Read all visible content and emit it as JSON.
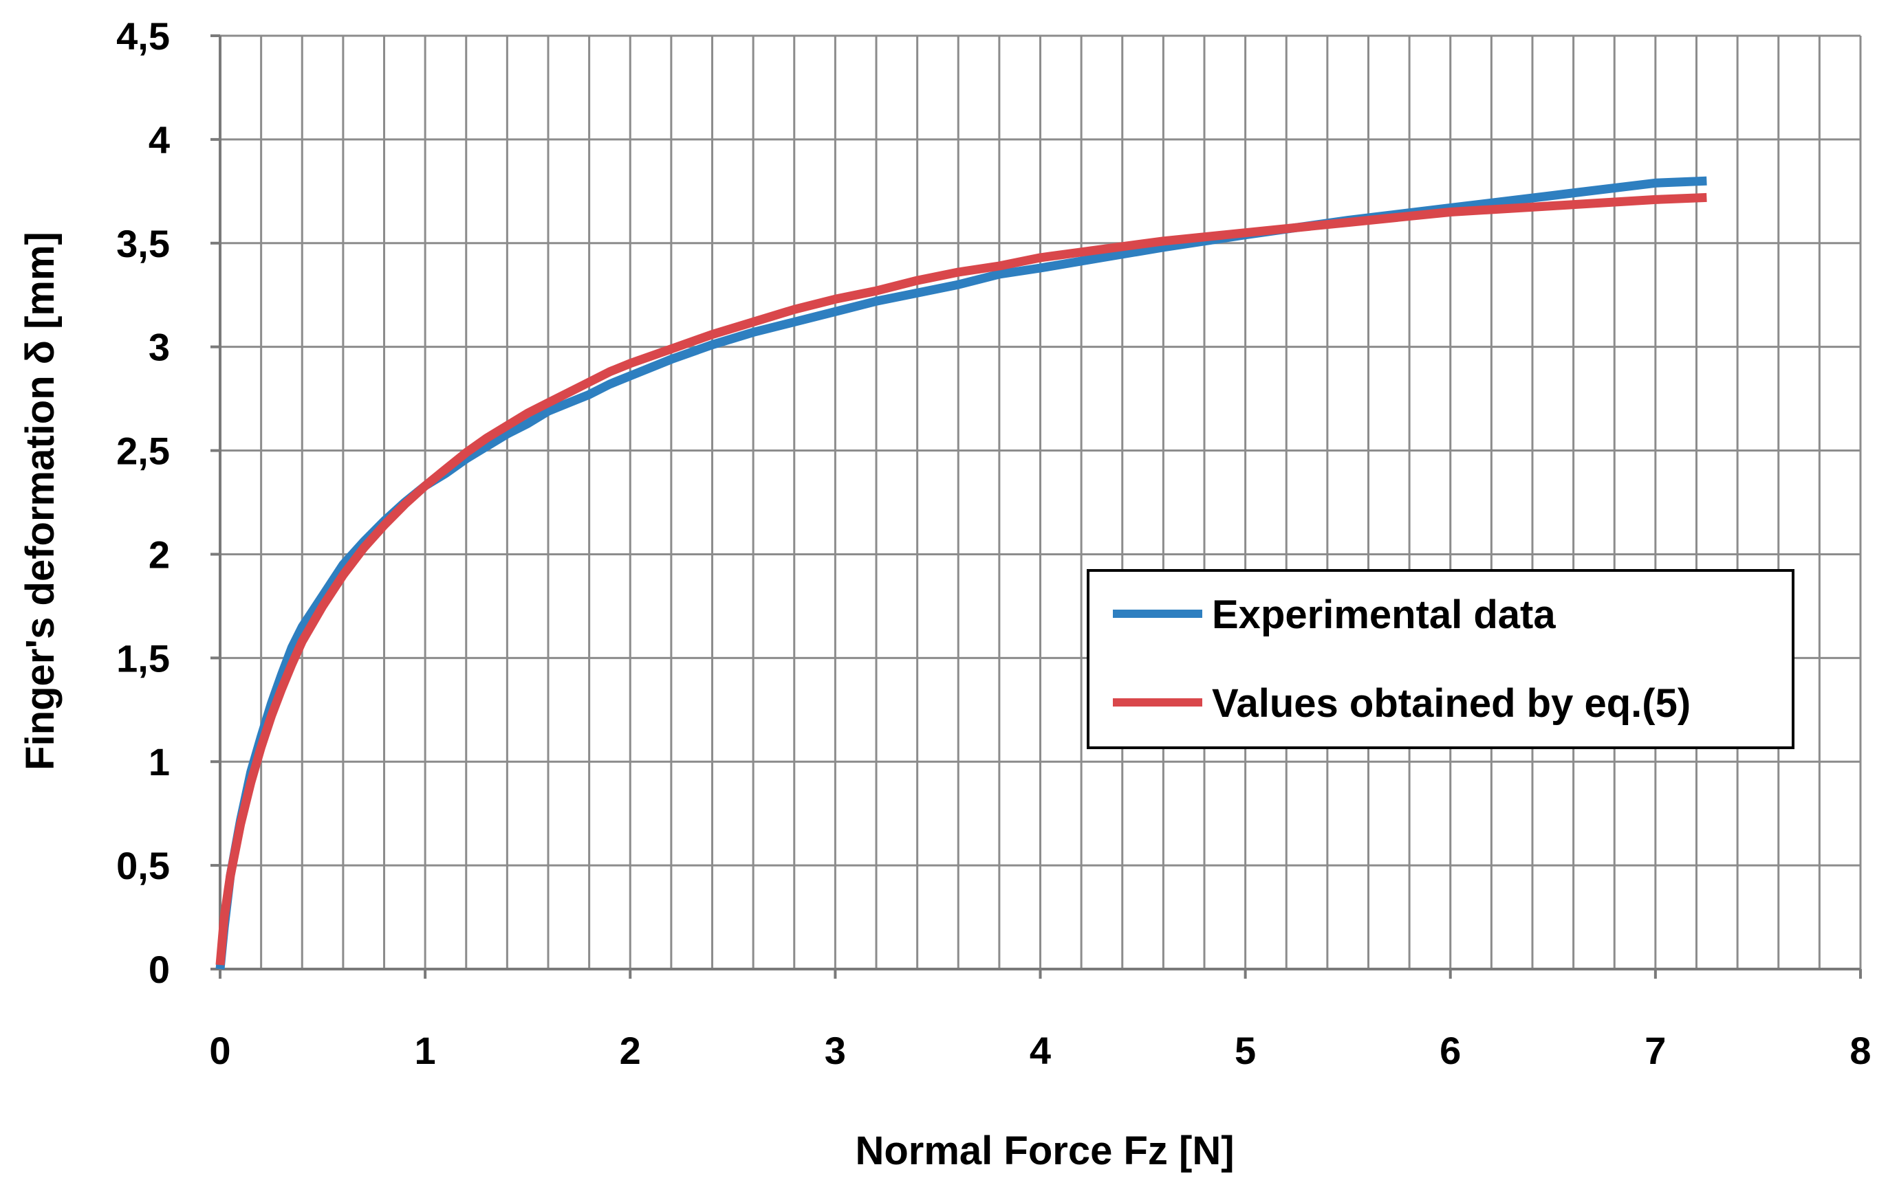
{
  "chart_data": {
    "type": "line",
    "title": "",
    "xlabel": "Normal Force Fz [N]",
    "ylabel": "Finger's deformation δ [mm]",
    "xlim": [
      0,
      8
    ],
    "ylim": [
      0,
      4.5
    ],
    "x_minor_step": 0.2,
    "grid": true,
    "x_ticks": [
      {
        "value": 0,
        "label": "0"
      },
      {
        "value": 1,
        "label": "1"
      },
      {
        "value": 2,
        "label": "2"
      },
      {
        "value": 3,
        "label": "3"
      },
      {
        "value": 4,
        "label": "4"
      },
      {
        "value": 5,
        "label": "5"
      },
      {
        "value": 6,
        "label": "6"
      },
      {
        "value": 7,
        "label": "7"
      },
      {
        "value": 8,
        "label": "8"
      }
    ],
    "y_ticks": [
      {
        "value": 0,
        "label": "0"
      },
      {
        "value": 0.5,
        "label": "0,5"
      },
      {
        "value": 1,
        "label": "1"
      },
      {
        "value": 1.5,
        "label": "1,5"
      },
      {
        "value": 2,
        "label": "2"
      },
      {
        "value": 2.5,
        "label": "2,5"
      },
      {
        "value": 3,
        "label": "3"
      },
      {
        "value": 3.5,
        "label": "3,5"
      },
      {
        "value": 4,
        "label": "4"
      },
      {
        "value": 4.5,
        "label": "4,5"
      }
    ],
    "legend_position": "center-right",
    "series": [
      {
        "name": "Experimental data",
        "color": "#2e7fc0",
        "points": [
          [
            0.0,
            0.0
          ],
          [
            0.02,
            0.2
          ],
          [
            0.05,
            0.45
          ],
          [
            0.1,
            0.72
          ],
          [
            0.15,
            0.95
          ],
          [
            0.2,
            1.12
          ],
          [
            0.25,
            1.28
          ],
          [
            0.3,
            1.42
          ],
          [
            0.35,
            1.55
          ],
          [
            0.4,
            1.65
          ],
          [
            0.5,
            1.8
          ],
          [
            0.6,
            1.95
          ],
          [
            0.7,
            2.06
          ],
          [
            0.8,
            2.16
          ],
          [
            0.9,
            2.25
          ],
          [
            1.0,
            2.33
          ],
          [
            1.1,
            2.39
          ],
          [
            1.2,
            2.46
          ],
          [
            1.3,
            2.52
          ],
          [
            1.4,
            2.58
          ],
          [
            1.5,
            2.63
          ],
          [
            1.6,
            2.69
          ],
          [
            1.7,
            2.73
          ],
          [
            1.8,
            2.77
          ],
          [
            1.9,
            2.82
          ],
          [
            2.0,
            2.86
          ],
          [
            2.2,
            2.94
          ],
          [
            2.4,
            3.01
          ],
          [
            2.6,
            3.07
          ],
          [
            2.8,
            3.12
          ],
          [
            3.0,
            3.17
          ],
          [
            3.2,
            3.22
          ],
          [
            3.4,
            3.26
          ],
          [
            3.6,
            3.3
          ],
          [
            3.8,
            3.35
          ],
          [
            4.0,
            3.38
          ],
          [
            4.3,
            3.43
          ],
          [
            4.6,
            3.48
          ],
          [
            5.0,
            3.54
          ],
          [
            5.5,
            3.61
          ],
          [
            6.0,
            3.67
          ],
          [
            6.5,
            3.73
          ],
          [
            7.0,
            3.79
          ],
          [
            7.25,
            3.8
          ]
        ]
      },
      {
        "name": "Values obtained by eq.(5)",
        "color": "#d9474b",
        "points": [
          [
            0.0,
            0.02
          ],
          [
            0.02,
            0.25
          ],
          [
            0.05,
            0.45
          ],
          [
            0.1,
            0.7
          ],
          [
            0.15,
            0.9
          ],
          [
            0.2,
            1.07
          ],
          [
            0.25,
            1.22
          ],
          [
            0.3,
            1.35
          ],
          [
            0.35,
            1.47
          ],
          [
            0.4,
            1.58
          ],
          [
            0.5,
            1.75
          ],
          [
            0.6,
            1.9
          ],
          [
            0.7,
            2.03
          ],
          [
            0.8,
            2.14
          ],
          [
            0.9,
            2.24
          ],
          [
            1.0,
            2.33
          ],
          [
            1.1,
            2.41
          ],
          [
            1.2,
            2.49
          ],
          [
            1.3,
            2.56
          ],
          [
            1.4,
            2.62
          ],
          [
            1.5,
            2.68
          ],
          [
            1.6,
            2.73
          ],
          [
            1.7,
            2.78
          ],
          [
            1.8,
            2.83
          ],
          [
            1.9,
            2.88
          ],
          [
            2.0,
            2.92
          ],
          [
            2.2,
            2.99
          ],
          [
            2.4,
            3.06
          ],
          [
            2.6,
            3.12
          ],
          [
            2.8,
            3.18
          ],
          [
            3.0,
            3.23
          ],
          [
            3.2,
            3.27
          ],
          [
            3.4,
            3.32
          ],
          [
            3.6,
            3.36
          ],
          [
            3.8,
            3.39
          ],
          [
            4.0,
            3.43
          ],
          [
            4.3,
            3.47
          ],
          [
            4.6,
            3.51
          ],
          [
            5.0,
            3.55
          ],
          [
            5.5,
            3.6
          ],
          [
            6.0,
            3.65
          ],
          [
            6.5,
            3.68
          ],
          [
            7.0,
            3.71
          ],
          [
            7.25,
            3.72
          ]
        ]
      }
    ]
  }
}
